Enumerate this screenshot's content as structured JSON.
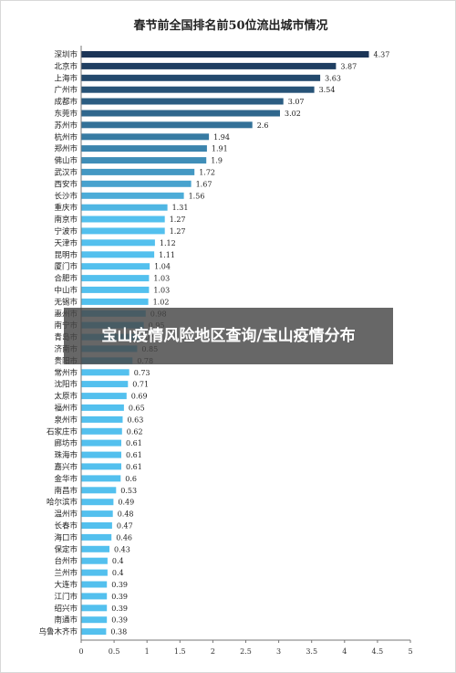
{
  "overlay": {
    "text": "宝山疫情风险地区查询/宝山疫情分布"
  },
  "chart_data": {
    "type": "bar",
    "orientation": "horizontal",
    "title": "春节前全国排名前50位流出城市情况",
    "xlabel": "",
    "ylabel": "",
    "xlim": [
      0,
      5
    ],
    "xticks": [
      "0",
      "0.5",
      "1",
      "1.5",
      "2",
      "2.5",
      "3",
      "3.5",
      "4",
      "4.5",
      "5"
    ],
    "grid": false,
    "colors": {
      "dark": "#1b3557",
      "light": "#53c0ee"
    },
    "categories": [
      "深圳市",
      "北京市",
      "上海市",
      "广州市",
      "成都市",
      "东莞市",
      "苏州市",
      "杭州市",
      "郑州市",
      "佛山市",
      "武汉市",
      "西安市",
      "长沙市",
      "重庆市",
      "南京市",
      "宁波市",
      "天津市",
      "昆明市",
      "厦门市",
      "合肥市",
      "中山市",
      "无锡市",
      "惠州市",
      "南宁市",
      "青岛市",
      "济南市",
      "贵阳市",
      "常州市",
      "沈阳市",
      "太原市",
      "福州市",
      "泉州市",
      "石家庄市",
      "廊坊市",
      "珠海市",
      "嘉兴市",
      "金华市",
      "南昌市",
      "哈尔滨市",
      "温州市",
      "长春市",
      "海口市",
      "保定市",
      "台州市",
      "兰州市",
      "大连市",
      "江门市",
      "绍兴市",
      "南通市",
      "乌鲁木齐市"
    ],
    "values": [
      4.37,
      3.87,
      3.63,
      3.54,
      3.07,
      3.02,
      2.6,
      1.94,
      1.91,
      1.9,
      1.72,
      1.67,
      1.56,
      1.31,
      1.27,
      1.27,
      1.12,
      1.11,
      1.04,
      1.03,
      1.03,
      1.02,
      0.98,
      0.95,
      0.9,
      0.85,
      0.78,
      0.73,
      0.71,
      0.69,
      0.65,
      0.63,
      0.62,
      0.61,
      0.61,
      0.61,
      0.6,
      0.53,
      0.49,
      0.48,
      0.47,
      0.46,
      0.43,
      0.4,
      0.4,
      0.39,
      0.39,
      0.39,
      0.39,
      0.38
    ],
    "value_labels": [
      "4.37",
      "3.87",
      "3.63",
      "3.54",
      "3.07",
      "3.02",
      "2.6",
      "1.94",
      "1.91",
      "1.9",
      "1.72",
      "1.67",
      "1.56",
      "1.31",
      "1.27",
      "1.27",
      "1.12",
      "1.11",
      "1.04",
      "1.03",
      "1.03",
      "1.02",
      "0.98",
      "0.95",
      "0.9",
      "0.85",
      "0.78",
      "0.73",
      "0.71",
      "0.69",
      "0.65",
      "0.63",
      "0.62",
      "0.61",
      "0.61",
      "0.61",
      "0.6",
      "0.53",
      "0.49",
      "0.48",
      "0.47",
      "0.46",
      "0.43",
      "0.4",
      "0.4",
      "0.39",
      "0.39",
      "0.39",
      "0.39",
      "0.38"
    ]
  }
}
